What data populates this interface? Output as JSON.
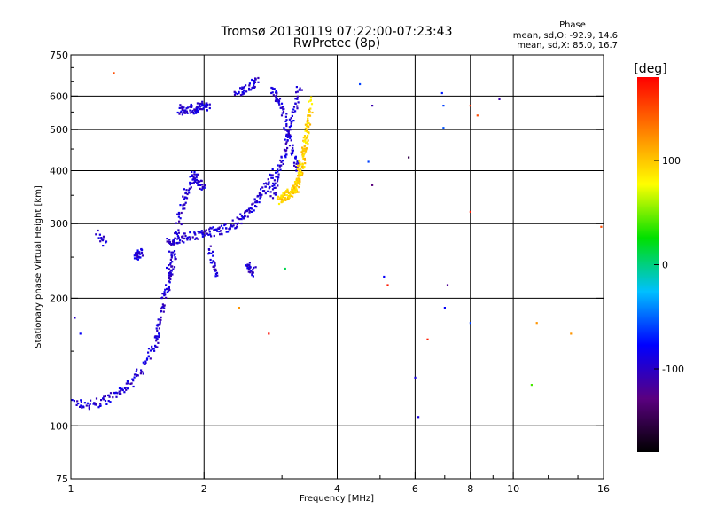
{
  "chart_data": {
    "type": "scatter",
    "title": "Tromsø 20130119 07:22:00-07:23:43",
    "subtitle": "RwPretec (8p)",
    "xlabel": "Frequency [MHz]",
    "ylabel": "Stationary phase Virtual Height [km]",
    "x_scale": "log",
    "y_scale": "log",
    "xlim": [
      1,
      16
    ],
    "ylim": [
      75,
      750
    ],
    "x_ticks": [
      1,
      2,
      4,
      6,
      8,
      10,
      16
    ],
    "x_tick_labels": [
      "1",
      "2",
      "4",
      "6",
      "8",
      "10",
      "16"
    ],
    "x_minor_ticks": [
      3,
      5,
      7,
      9,
      12,
      14
    ],
    "y_ticks": [
      75,
      100,
      200,
      300,
      400,
      500,
      600,
      750
    ],
    "y_tick_labels": [
      "75",
      "100",
      "200",
      "300",
      "400",
      "500",
      "600",
      "750"
    ],
    "y_minor_ticks": [
      150,
      250,
      350,
      450,
      550,
      650,
      700
    ],
    "grid": true,
    "grid_x": [
      1,
      2,
      4,
      6,
      8,
      10,
      16
    ],
    "grid_y": [
      100,
      200,
      300,
      400,
      500,
      600
    ],
    "stats": {
      "heading": "Phase",
      "line_o": "mean, sd,O: -92.9, 14.6",
      "line_x": "mean, sd,X:  85.0, 16.7"
    },
    "colorbar": {
      "label": "[deg]",
      "range": [
        -180,
        180
      ],
      "ticks": [
        -100,
        0,
        100
      ],
      "tick_labels": [
        "-100",
        "0",
        "100"
      ],
      "colormap": "rainbow (black-purple-blue-cyan-green-yellow-red)"
    },
    "colormap_stops": [
      "#000000",
      "#5a0080",
      "#0000ff",
      "#00c0ff",
      "#00e000",
      "#ffff00",
      "#ff8000",
      "#ff0000"
    ],
    "series": [
      {
        "segments": [
          {
            "x": [
              1.0,
              1.08,
              1.15,
              1.22,
              1.3,
              1.38,
              1.45,
              1.52,
              1.58
            ],
            "y": [
              114,
              112,
              113,
              116,
              120,
              128,
              137,
              150,
              165
            ]
          },
          {
            "x": [
              1.55,
              1.58,
              1.62,
              1.65,
              1.68,
              1.72
            ],
            "y": [
              160,
              175,
              195,
              210,
              230,
              250
            ]
          },
          {
            "x": [
              1.65,
              1.7,
              1.75,
              1.8,
              1.85,
              1.9,
              1.95,
              2.0
            ],
            "y": [
              230,
              260,
              300,
              340,
              370,
              390,
              380,
              360
            ]
          },
          {
            "x": [
              1.65,
              1.72,
              1.8,
              1.9,
              2.0,
              2.1,
              2.2,
              2.3,
              2.4,
              2.5,
              2.6,
              2.7,
              2.8,
              2.9
            ],
            "y": [
              270,
              275,
              278,
              282,
              285,
              287,
              290,
              295,
              305,
              318,
              335,
              355,
              375,
              395
            ]
          },
          {
            "x": [
              1.75,
              1.8,
              1.85,
              1.9,
              1.95,
              2.0,
              2.05
            ],
            "y": [
              560,
              555,
              560,
              558,
              565,
              570,
              560
            ]
          },
          {
            "x": [
              2.35,
              2.45,
              2.55,
              2.65
            ],
            "y": [
              610,
              620,
              640,
              655
            ]
          },
          {
            "x": [
              2.85,
              2.92,
              3.0,
              3.08,
              3.15,
              3.22,
              3.3
            ],
            "y": [
              620,
              600,
              560,
              500,
              450,
              420,
              400
            ]
          },
          {
            "x": [
              2.85,
              2.92,
              3.0,
              3.08,
              3.15,
              3.22,
              3.3
            ],
            "y": [
              350,
              380,
              420,
              470,
              520,
              570,
              640
            ]
          },
          {
            "x": [
              1.15,
              1.2
            ],
            "y": [
              285,
              265
            ]
          },
          {
            "x": [
              1.4,
              1.42,
              1.44
            ],
            "y": [
              255,
              250,
              260
            ]
          },
          {
            "x": [
              2.05,
              2.1,
              2.15
            ],
            "y": [
              260,
              240,
              225
            ]
          },
          {
            "x": [
              2.5,
              2.55,
              2.6
            ],
            "y": [
              240,
              235,
              230
            ]
          }
        ],
        "phase_deg": -95
      },
      {
        "segments": [
          {
            "x": [
              2.95,
              3.0,
              3.05,
              3.1,
              3.15,
              3.2,
              3.25,
              3.3,
              3.35,
              3.4,
              3.45
            ],
            "y": [
              340,
              345,
              350,
              352,
              355,
              360,
              370,
              390,
              420,
              470,
              560
            ]
          },
          {
            "x": [
              3.2,
              3.25,
              3.3,
              3.35,
              3.4,
              3.45,
              3.5
            ],
            "y": [
              360,
              380,
              410,
              440,
              480,
              520,
              600
            ]
          }
        ],
        "phase_deg": 95
      },
      {
        "points": [
          {
            "x": 1.02,
            "y": 180,
            "phase_deg": -100
          },
          {
            "x": 1.05,
            "y": 165,
            "phase_deg": -80
          },
          {
            "x": 1.25,
            "y": 680,
            "phase_deg": 150
          },
          {
            "x": 3.05,
            "y": 235,
            "phase_deg": 10
          },
          {
            "x": 2.4,
            "y": 190,
            "phase_deg": 120
          },
          {
            "x": 2.8,
            "y": 165,
            "phase_deg": 175
          },
          {
            "x": 4.5,
            "y": 640,
            "phase_deg": -60
          },
          {
            "x": 4.8,
            "y": 570,
            "phase_deg": -110
          },
          {
            "x": 4.7,
            "y": 420,
            "phase_deg": -60
          },
          {
            "x": 4.8,
            "y": 370,
            "phase_deg": -130
          },
          {
            "x": 5.1,
            "y": 225,
            "phase_deg": -80
          },
          {
            "x": 5.2,
            "y": 215,
            "phase_deg": 170
          },
          {
            "x": 5.8,
            "y": 430,
            "phase_deg": -150
          },
          {
            "x": 6.0,
            "y": 130,
            "phase_deg": -90
          },
          {
            "x": 6.1,
            "y": 105,
            "phase_deg": -90
          },
          {
            "x": 6.4,
            "y": 160,
            "phase_deg": 170
          },
          {
            "x": 6.9,
            "y": 610,
            "phase_deg": -70
          },
          {
            "x": 6.95,
            "y": 570,
            "phase_deg": -60
          },
          {
            "x": 6.95,
            "y": 505,
            "phase_deg": -55
          },
          {
            "x": 7.0,
            "y": 190,
            "phase_deg": -80
          },
          {
            "x": 7.1,
            "y": 215,
            "phase_deg": -120
          },
          {
            "x": 8.0,
            "y": 570,
            "phase_deg": 160
          },
          {
            "x": 8.3,
            "y": 540,
            "phase_deg": 150
          },
          {
            "x": 8.0,
            "y": 320,
            "phase_deg": 170
          },
          {
            "x": 8.0,
            "y": 175,
            "phase_deg": -60
          },
          {
            "x": 9.3,
            "y": 590,
            "phase_deg": -110
          },
          {
            "x": 11.3,
            "y": 175,
            "phase_deg": 120
          },
          {
            "x": 11.0,
            "y": 125,
            "phase_deg": 40
          },
          {
            "x": 13.5,
            "y": 165,
            "phase_deg": 120
          },
          {
            "x": 15.8,
            "y": 295,
            "phase_deg": 150
          }
        ]
      }
    ]
  }
}
